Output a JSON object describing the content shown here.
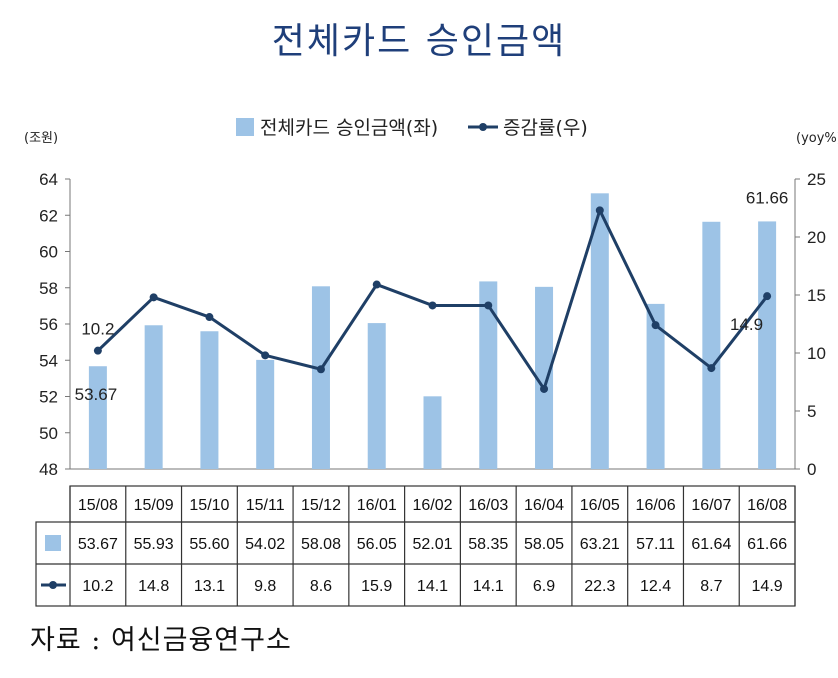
{
  "title": "전체카드 승인금액",
  "source": "자료 : 여신금융연구소",
  "chart_data": {
    "type": "bar+line",
    "categories": [
      "15/08",
      "15/09",
      "15/10",
      "15/11",
      "15/12",
      "16/01",
      "16/02",
      "16/03",
      "16/04",
      "16/05",
      "16/06",
      "16/07",
      "16/08"
    ],
    "series": [
      {
        "name": "전체카드 승인금액(좌)",
        "kind": "bar",
        "axis": "left",
        "color": "#9dc3e6",
        "values": [
          53.67,
          55.93,
          55.6,
          54.02,
          58.08,
          56.05,
          52.01,
          58.35,
          58.05,
          63.21,
          57.11,
          61.64,
          61.66
        ],
        "labels": [
          "53.67",
          "55.93",
          "55.60",
          "54.02",
          "58.08",
          "56.05",
          "52.01",
          "58.35",
          "58.05",
          "63.21",
          "57.11",
          "61.64",
          "61.66"
        ]
      },
      {
        "name": "증감률(우)",
        "kind": "line",
        "axis": "right",
        "color": "#1f3f66",
        "values": [
          10.2,
          14.8,
          13.1,
          9.8,
          8.6,
          15.9,
          14.1,
          14.1,
          6.9,
          22.3,
          12.4,
          8.7,
          14.9
        ],
        "labels": [
          "10.2",
          "14.8",
          "13.1",
          "9.8",
          "8.6",
          "15.9",
          "14.1",
          "14.1",
          "6.9",
          "22.3",
          "12.4",
          "8.7",
          "14.9"
        ]
      }
    ],
    "left_axis": {
      "unit": "(조원)",
      "min": 48,
      "max": 64,
      "ticks": [
        48,
        50,
        52,
        54,
        56,
        58,
        60,
        62,
        64
      ]
    },
    "right_axis": {
      "unit": "(yoy%)",
      "min": 0,
      "max": 25,
      "ticks": [
        0,
        5,
        10,
        15,
        20,
        25
      ]
    },
    "annotations": [
      {
        "series": 0,
        "index": 0,
        "text": "53.67"
      },
      {
        "series": 0,
        "index": 12,
        "text": "61.66"
      },
      {
        "series": 1,
        "index": 0,
        "text": "10.2"
      },
      {
        "series": 1,
        "index": 12,
        "text": "14.9"
      }
    ],
    "legend": "top-center",
    "data_table": true,
    "grid": false
  }
}
